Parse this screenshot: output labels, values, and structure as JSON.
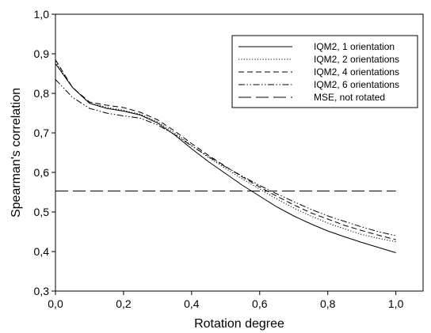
{
  "chart_data": {
    "type": "line",
    "title": "",
    "xlabel": "Rotation degree",
    "ylabel": "Spearman's correlation",
    "xlim": [
      0.0,
      1.08
    ],
    "ylim": [
      0.3,
      1.0
    ],
    "xticks": [
      0.0,
      0.2,
      0.4,
      0.6,
      0.8,
      1.0
    ],
    "xtick_labels": [
      "0,0",
      "0,2",
      "0,4",
      "0,6",
      "0,8",
      "1,0"
    ],
    "yticks": [
      0.3,
      0.4,
      0.5,
      0.6,
      0.7,
      0.8,
      0.9,
      1.0
    ],
    "ytick_labels": [
      "0,3",
      "0,4",
      "0,5",
      "0,6",
      "0,7",
      "0,8",
      "0,9",
      "1,0"
    ],
    "grid": false,
    "legend_position": "top-right",
    "x": [
      0.0,
      0.05,
      0.1,
      0.15,
      0.2,
      0.25,
      0.3,
      0.35,
      0.4,
      0.45,
      0.5,
      0.55,
      0.6,
      0.65,
      0.7,
      0.75,
      0.8,
      0.85,
      0.9,
      0.95,
      1.0
    ],
    "series": [
      {
        "name": "IQM2, 1 orientation",
        "style": "solid",
        "values": [
          0.875,
          0.815,
          0.775,
          0.762,
          0.755,
          0.745,
          0.725,
          0.695,
          0.66,
          0.627,
          0.597,
          0.567,
          0.54,
          0.513,
          0.49,
          0.47,
          0.452,
          0.437,
          0.423,
          0.41,
          0.397
        ]
      },
      {
        "name": "IQM2, 2 orientations",
        "style": "dotted",
        "values": [
          0.88,
          0.815,
          0.775,
          0.765,
          0.757,
          0.747,
          0.728,
          0.7,
          0.668,
          0.638,
          0.61,
          0.583,
          0.558,
          0.533,
          0.51,
          0.49,
          0.472,
          0.457,
          0.443,
          0.433,
          0.425
        ]
      },
      {
        "name": "IQM2, 4 orientations",
        "style": "dashed",
        "values": [
          0.885,
          0.815,
          0.778,
          0.77,
          0.764,
          0.752,
          0.733,
          0.705,
          0.673,
          0.643,
          0.615,
          0.588,
          0.563,
          0.54,
          0.518,
          0.498,
          0.482,
          0.466,
          0.453,
          0.441,
          0.43
        ]
      },
      {
        "name": "IQM2, 6 orientations",
        "style": "dashdotdot",
        "values": [
          0.835,
          0.79,
          0.762,
          0.75,
          0.743,
          0.737,
          0.72,
          0.696,
          0.667,
          0.64,
          0.614,
          0.59,
          0.567,
          0.546,
          0.526,
          0.507,
          0.49,
          0.476,
          0.462,
          0.45,
          0.44
        ]
      },
      {
        "name": "MSE, not rotated",
        "style": "longdash",
        "values": [
          0.553,
          0.553,
          0.553,
          0.553,
          0.553,
          0.553,
          0.553,
          0.553,
          0.553,
          0.553,
          0.553,
          0.553,
          0.553,
          0.553,
          0.553,
          0.553,
          0.553,
          0.553,
          0.553,
          0.553,
          0.553
        ]
      }
    ]
  }
}
